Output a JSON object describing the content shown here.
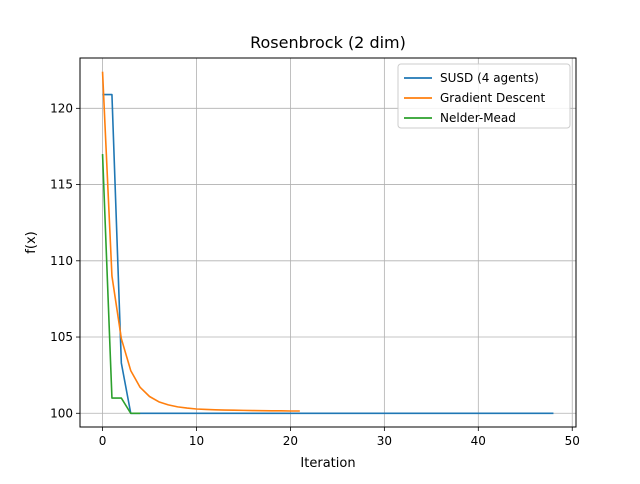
{
  "chart_data": {
    "type": "line",
    "title": "Rosenbrock (2 dim)",
    "xlabel": "Iteration",
    "ylabel": "f(x)",
    "xlim": [
      -2.4,
      50.4
    ],
    "ylim": [
      99.1,
      123.3
    ],
    "xticks": [
      0,
      10,
      20,
      30,
      40,
      50
    ],
    "yticks": [
      100,
      105,
      110,
      115,
      120
    ],
    "grid": true,
    "legend_position": "top-right",
    "series": [
      {
        "name": "SUSD (4 agents)",
        "color": "#1f77b4",
        "x": [
          0,
          1,
          2,
          3,
          4,
          5,
          10,
          20,
          30,
          40,
          48
        ],
        "y": [
          120.9,
          120.9,
          103.3,
          100.0,
          100.0,
          100.0,
          100.0,
          100.0,
          100.0,
          100.0,
          100.0
        ]
      },
      {
        "name": "Gradient Descent",
        "color": "#ff7f0e",
        "x": [
          0,
          1,
          2,
          3,
          4,
          5,
          6,
          7,
          8,
          9,
          10,
          11,
          12,
          13,
          14,
          15,
          16,
          17,
          18,
          19,
          20,
          21
        ],
        "y": [
          122.4,
          109.0,
          104.9,
          102.8,
          101.7,
          101.1,
          100.75,
          100.55,
          100.42,
          100.34,
          100.28,
          100.25,
          100.23,
          100.21,
          100.2,
          100.19,
          100.18,
          100.17,
          100.16,
          100.16,
          100.15,
          100.15
        ]
      },
      {
        "name": "Nelder-Mead",
        "color": "#2ca02c",
        "x": [
          0,
          1,
          2,
          3,
          4
        ],
        "y": [
          117.0,
          101.0,
          101.0,
          100.0,
          100.0
        ]
      }
    ]
  }
}
